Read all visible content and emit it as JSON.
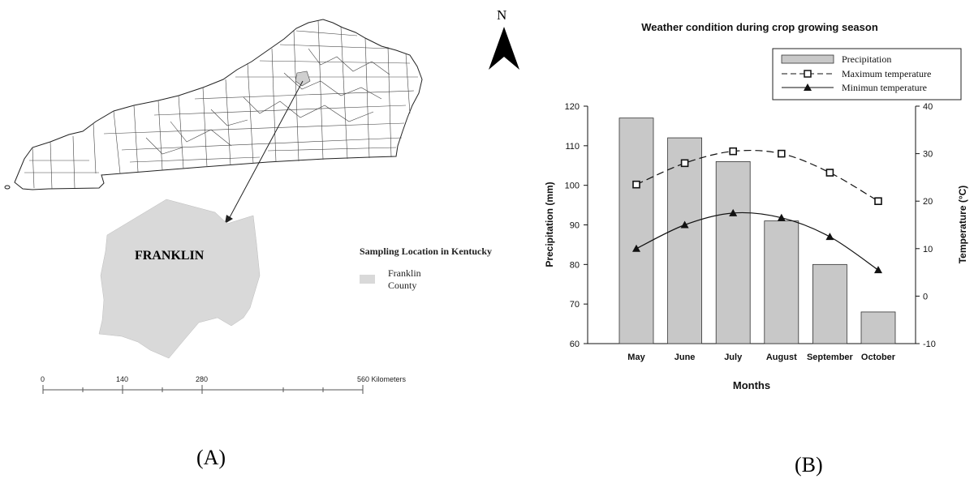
{
  "panel_a": {
    "caption": "(A)",
    "north_label": "N",
    "county_label": "FRANKLIN",
    "legend_title": "Sampling Location in Kentucky",
    "legend_item_line1": "Franklin",
    "legend_item_line2": "County",
    "scale_labels": [
      "0",
      "140",
      "280",
      "560 Kilometers"
    ],
    "fill_color": "#d9d9d9"
  },
  "panel_b": {
    "caption": "(B)"
  },
  "chart_data": {
    "type": "bar",
    "title": "Weather condition during crop growing season",
    "xlabel": "Months",
    "ylabel": "Precipitation (mm)",
    "y2label": "Temperature (°C)",
    "categories": [
      "May",
      "June",
      "July",
      "August",
      "September",
      "October"
    ],
    "ylim": [
      60,
      120
    ],
    "y2lim": [
      -10,
      40
    ],
    "yticks": [
      "60",
      "70",
      "80",
      "90",
      "100",
      "110",
      "120"
    ],
    "y2ticks": [
      "-10",
      "0",
      "10",
      "20",
      "30",
      "40"
    ],
    "series": [
      {
        "name": "Precipitation",
        "type": "bar",
        "axis": "left",
        "values": [
          117,
          112,
          106,
          91,
          80,
          68
        ],
        "color": "#c8c8c8"
      },
      {
        "name": "Maximum temperature",
        "type": "line",
        "axis": "right",
        "style": "dashed",
        "marker": "open-square",
        "values": [
          23.5,
          28,
          30.5,
          30,
          26,
          20
        ]
      },
      {
        "name": "Minimun temperature",
        "type": "line",
        "axis": "right",
        "style": "solid",
        "marker": "filled-triangle",
        "values": [
          10,
          15,
          17.5,
          16.5,
          12.5,
          5.5
        ]
      }
    ],
    "legend_position": "top-right",
    "grid": false
  }
}
